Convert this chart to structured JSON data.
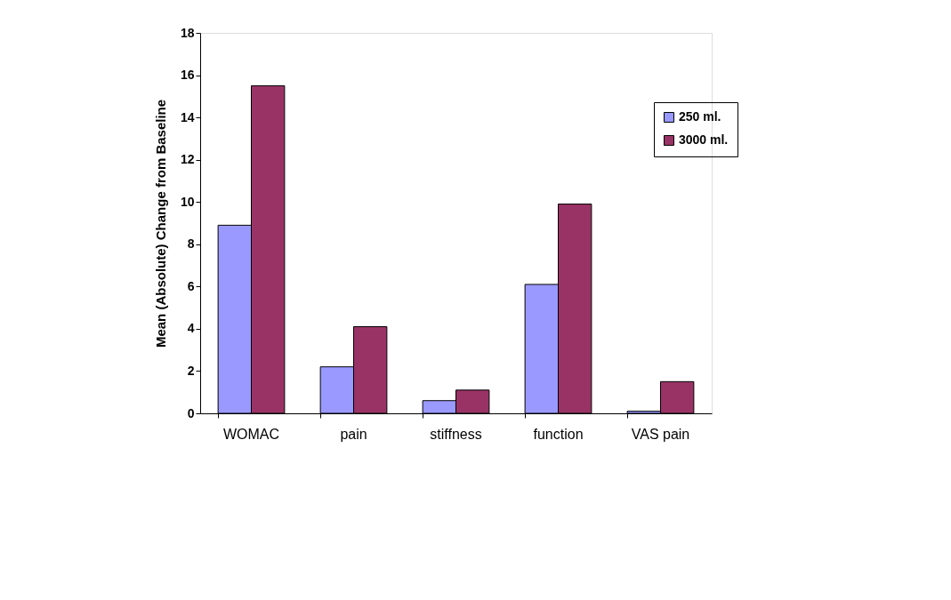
{
  "chart_data": {
    "type": "bar",
    "ylabel": "Mean (Absolute) Change from Baseline",
    "categories": [
      "WOMAC",
      "pain",
      "stiffness",
      "function",
      "VAS pain"
    ],
    "series": [
      {
        "name": "250 ml.",
        "color": "#9999ff",
        "values": [
          8.9,
          2.2,
          0.6,
          6.1,
          0.1
        ]
      },
      {
        "name": "3000 ml.",
        "color": "#993366",
        "values": [
          15.5,
          4.1,
          1.1,
          9.9,
          1.5
        ]
      }
    ],
    "ylim": [
      0,
      18
    ],
    "yticks": [
      0,
      2,
      4,
      6,
      8,
      10,
      12,
      14,
      16,
      18
    ],
    "grid": false,
    "legend": "right"
  }
}
